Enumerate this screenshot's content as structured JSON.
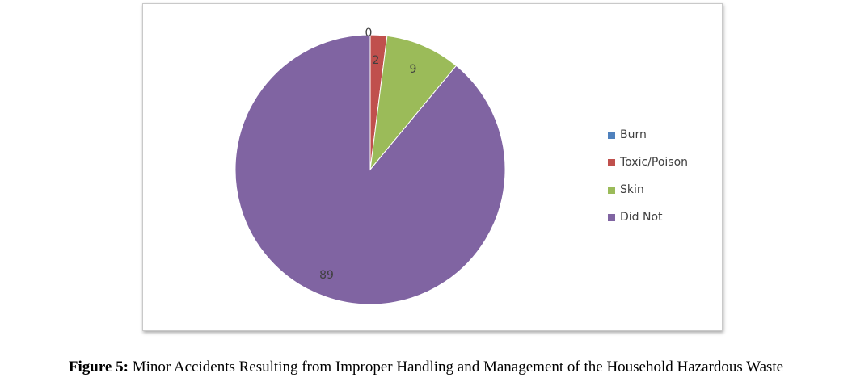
{
  "chart_data": {
    "type": "pie",
    "categories": [
      "Burn",
      "Toxic/Poison",
      "Skin",
      "Did Not"
    ],
    "values": [
      0,
      2,
      9,
      89
    ],
    "data_labels": [
      "0",
      "2",
      "9",
      "89"
    ],
    "colors": [
      "#4f81bd",
      "#c0504d",
      "#9bbb59",
      "#8064a2"
    ],
    "legend_position": "right"
  },
  "caption": {
    "label": "Figure 5:",
    "text": " Minor Accidents Resulting from Improper Handling and Management of the Household Hazardous Waste"
  }
}
